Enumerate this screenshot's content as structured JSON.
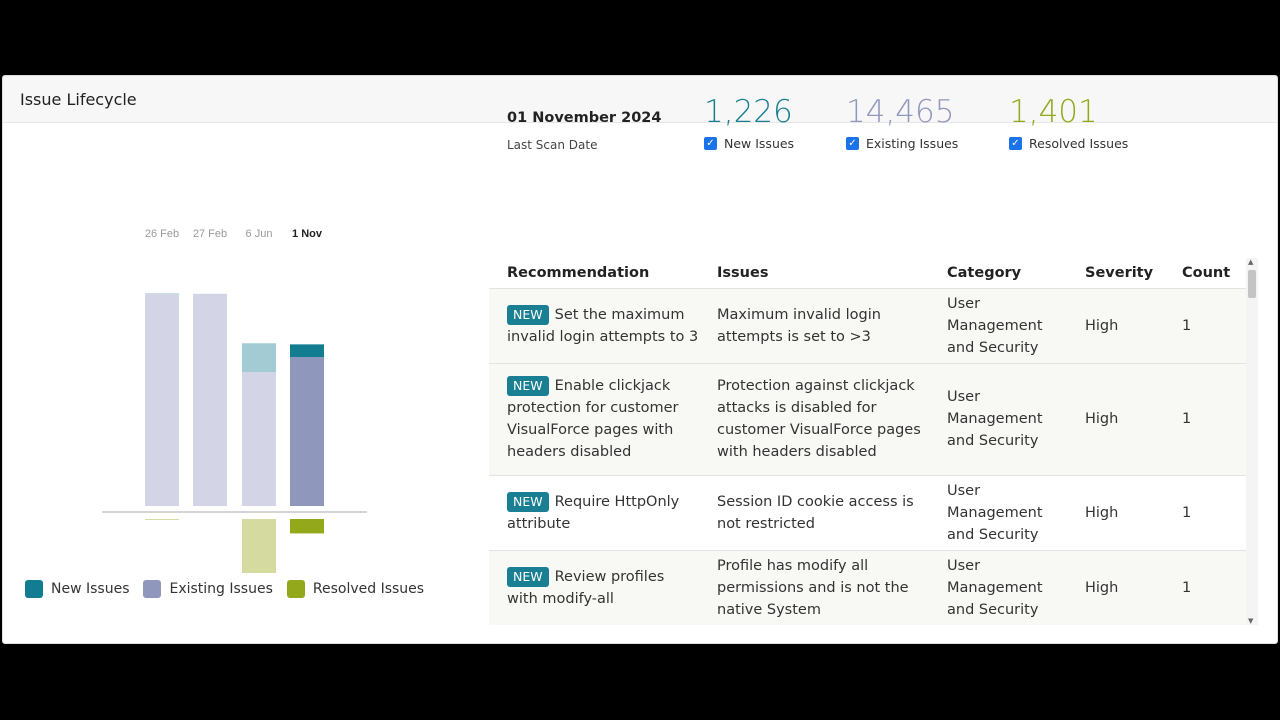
{
  "panel": {
    "title": "Issue Lifecycle"
  },
  "summary": {
    "date": "01 November 2024",
    "date_label": "Last Scan Date",
    "stats": [
      {
        "value": "1,226",
        "label": "New Issues",
        "checked": true,
        "color": "#1a7f93"
      },
      {
        "value": "14,465",
        "label": "Existing Issues",
        "checked": true,
        "color": "#9097bd"
      },
      {
        "value": "1,401",
        "label": "Resolved Issues",
        "checked": true,
        "color": "#93a81a"
      }
    ]
  },
  "chart_data": {
    "type": "bar",
    "stacked": true,
    "categories": [
      "26 Feb",
      "27 Feb",
      "6 Jun",
      "1 Nov"
    ],
    "selected": "1 Nov",
    "series": [
      {
        "name": "New Issues",
        "values": [
          50,
          0,
          2800,
          1226
        ],
        "color": "#127c91"
      },
      {
        "name": "Existing Issues",
        "values": [
          20600,
          20600,
          13000,
          14465
        ],
        "color": "#9097bd"
      },
      {
        "name": "Resolved Issues",
        "values": [
          100,
          0,
          7800,
          1401
        ],
        "color": "#93a81a",
        "direction": "negative"
      }
    ],
    "legend": "bottom-left",
    "grid": false
  },
  "legend": [
    {
      "label": "New Issues",
      "color": "#127c91"
    },
    {
      "label": "Existing Issues",
      "color": "#9097bd"
    },
    {
      "label": "Resolved Issues",
      "color": "#93a81a"
    }
  ],
  "table": {
    "columns": [
      "Recommendation",
      "Issues",
      "Category",
      "Severity",
      "Count"
    ],
    "badge": "NEW",
    "rows": [
      {
        "recommendation": "Set the maximum invalid login attempts to 3",
        "issue": "Maximum invalid login attempts is set to >3",
        "category": "User Management and Security",
        "severity": "High",
        "count": "1"
      },
      {
        "recommendation": "Enable clickjack protection for customer VisualForce pages with headers disabled",
        "issue": "Protection against clickjack attacks is disabled for customer VisualForce pages with headers disabled",
        "category": "User Management and Security",
        "severity": "High",
        "count": "1"
      },
      {
        "recommendation": "Require HttpOnly attribute",
        "issue": "Session ID cookie access is not restricted",
        "category": "User Management and Security",
        "severity": "High",
        "count": "1"
      },
      {
        "recommendation": "Review profiles with modify-all",
        "issue": "Profile has modify all permissions and is not the native System",
        "category": "User Management and Security",
        "severity": "High",
        "count": "1"
      }
    ]
  }
}
